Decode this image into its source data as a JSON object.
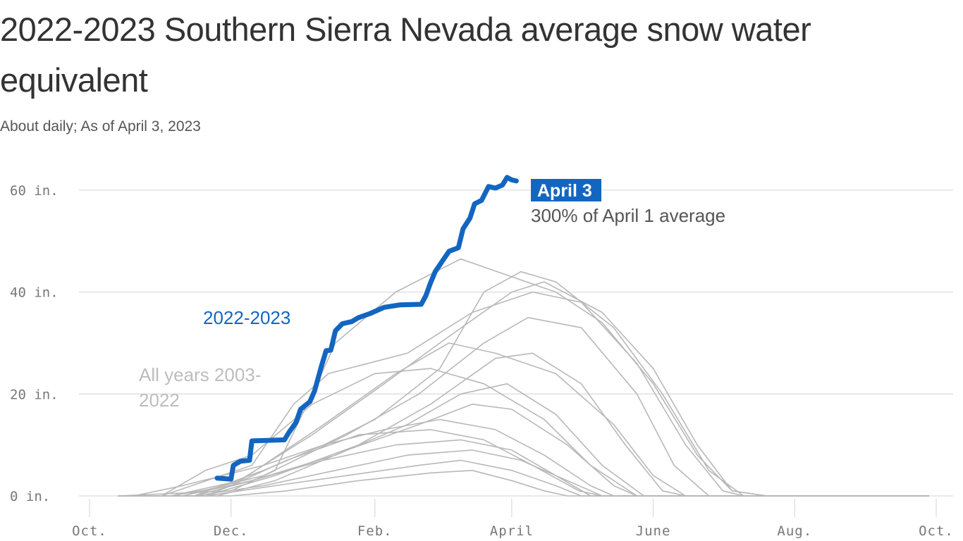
{
  "chart_data": {
    "type": "line",
    "title": "2022-2023 Southern Sierra Nevada average snow water equivalent",
    "subtitle": "About daily; As of April 3, 2023",
    "xlabel": "",
    "ylabel": "",
    "ylim": [
      0,
      65
    ],
    "y_ticks": [
      {
        "value": 0,
        "label": "0 in."
      },
      {
        "value": 20,
        "label": "20 in."
      },
      {
        "value": 40,
        "label": "40 in."
      },
      {
        "value": 60,
        "label": "60 in."
      }
    ],
    "x_ticks": [
      {
        "date": "10-01",
        "label": "Oct."
      },
      {
        "date": "12-01",
        "label": "Dec."
      },
      {
        "date": "02-01",
        "label": "Feb."
      },
      {
        "date": "04-01",
        "label": "April"
      },
      {
        "date": "06-01",
        "label": "June"
      },
      {
        "date": "08-01",
        "label": "Aug."
      },
      {
        "date": "10-01+",
        "label": "Oct."
      }
    ],
    "grid": true,
    "colors": {
      "current": "#1366c0",
      "history": "#b8b8b8"
    },
    "annotations": {
      "current_label": "2022-2023",
      "history_label_line1": "All years 2003-",
      "history_label_line2": "2022",
      "end_badge": "April 3",
      "end_note": "300% of April 1 average"
    },
    "series": [
      {
        "name": "2022-2023",
        "highlight": true,
        "points": [
          [
            "2022-11-25",
            3.5
          ],
          [
            "2022-12-01",
            3.3
          ],
          [
            "2022-12-02",
            6
          ],
          [
            "2022-12-05",
            6.8
          ],
          [
            "2022-12-09",
            7
          ],
          [
            "2022-12-10",
            10.8
          ],
          [
            "2022-12-24",
            11
          ],
          [
            "2022-12-26",
            12.5
          ],
          [
            "2022-12-29",
            14.4
          ],
          [
            "2022-12-31",
            17
          ],
          [
            "2023-01-04",
            18.5
          ],
          [
            "2023-01-06",
            20.6
          ],
          [
            "2023-01-09",
            25.5
          ],
          [
            "2023-01-11",
            28.5
          ],
          [
            "2023-01-13",
            28.6
          ],
          [
            "2023-01-15",
            32.4
          ],
          [
            "2023-01-18",
            33.8
          ],
          [
            "2023-01-22",
            34.2
          ],
          [
            "2023-01-25",
            35
          ],
          [
            "2023-01-30",
            35.8
          ],
          [
            "2023-02-05",
            37
          ],
          [
            "2023-02-12",
            37.5
          ],
          [
            "2023-02-21",
            37.6
          ],
          [
            "2023-02-23",
            39.3
          ],
          [
            "2023-02-25",
            41.8
          ],
          [
            "2023-02-27",
            44
          ],
          [
            "2023-03-02",
            46
          ],
          [
            "2023-03-05",
            48
          ],
          [
            "2023-03-09",
            48.7
          ],
          [
            "2023-03-11",
            52.4
          ],
          [
            "2023-03-14",
            54.5
          ],
          [
            "2023-03-16",
            57.3
          ],
          [
            "2023-03-19",
            58
          ],
          [
            "2023-03-22",
            60.7
          ],
          [
            "2023-03-25",
            60.4
          ],
          [
            "2023-03-28",
            61
          ],
          [
            "2023-03-30",
            62.5
          ],
          [
            "2023-04-01",
            62
          ],
          [
            "2023-04-03",
            61.8
          ]
        ]
      },
      {
        "name": "",
        "points": [
          [
            "10-01",
            0
          ],
          [
            "12-01",
            1
          ],
          [
            "12-20",
            5
          ],
          [
            "01-05",
            20
          ],
          [
            "01-15",
            30
          ],
          [
            "02-10",
            40
          ],
          [
            "03-10",
            46.5
          ],
          [
            "04-01",
            43
          ],
          [
            "04-20",
            40
          ],
          [
            "05-10",
            34
          ],
          [
            "06-01",
            22
          ],
          [
            "06-20",
            8
          ],
          [
            "07-05",
            1
          ],
          [
            "07-20",
            0
          ]
        ]
      },
      {
        "name": "",
        "points": [
          [
            "11-15",
            0
          ],
          [
            "12-15",
            5
          ],
          [
            "01-10",
            10
          ],
          [
            "02-01",
            15
          ],
          [
            "03-01",
            25
          ],
          [
            "03-20",
            40
          ],
          [
            "04-05",
            44
          ],
          [
            "04-20",
            42
          ],
          [
            "05-15",
            33
          ],
          [
            "06-05",
            20
          ],
          [
            "06-25",
            5
          ],
          [
            "07-10",
            0
          ]
        ]
      },
      {
        "name": "",
        "points": [
          [
            "11-20",
            0
          ],
          [
            "12-01",
            2
          ],
          [
            "01-05",
            12
          ],
          [
            "02-05",
            22
          ],
          [
            "03-01",
            30
          ],
          [
            "04-01",
            40
          ],
          [
            "04-15",
            42
          ],
          [
            "05-10",
            36
          ],
          [
            "06-01",
            25
          ],
          [
            "06-20",
            10
          ],
          [
            "07-05",
            1
          ],
          [
            "07-20",
            0
          ]
        ]
      },
      {
        "name": "",
        "points": [
          [
            "11-01",
            0
          ],
          [
            "12-10",
            6
          ],
          [
            "12-28",
            18
          ],
          [
            "01-12",
            24
          ],
          [
            "02-15",
            28
          ],
          [
            "03-15",
            36
          ],
          [
            "04-10",
            40
          ],
          [
            "05-01",
            38
          ],
          [
            "05-25",
            26
          ],
          [
            "06-15",
            10
          ],
          [
            "07-01",
            1
          ],
          [
            "07-10",
            0
          ]
        ]
      },
      {
        "name": "",
        "points": [
          [
            "11-10",
            0
          ],
          [
            "12-15",
            4
          ],
          [
            "01-20",
            12
          ],
          [
            "02-20",
            20
          ],
          [
            "03-20",
            30
          ],
          [
            "04-08",
            35
          ],
          [
            "05-01",
            33
          ],
          [
            "05-25",
            20
          ],
          [
            "06-10",
            6
          ],
          [
            "06-25",
            0
          ]
        ]
      },
      {
        "name": "",
        "points": [
          [
            "11-05",
            0
          ],
          [
            "12-05",
            3
          ],
          [
            "01-10",
            14
          ],
          [
            "02-10",
            24
          ],
          [
            "03-05",
            30
          ],
          [
            "03-25",
            28
          ],
          [
            "04-20",
            24
          ],
          [
            "05-15",
            14
          ],
          [
            "06-01",
            4
          ],
          [
            "06-15",
            0
          ]
        ]
      },
      {
        "name": "",
        "points": [
          [
            "11-20",
            0
          ],
          [
            "12-20",
            4
          ],
          [
            "01-25",
            10
          ],
          [
            "02-25",
            18
          ],
          [
            "03-25",
            27
          ],
          [
            "04-10",
            28
          ],
          [
            "05-01",
            22
          ],
          [
            "05-20",
            10
          ],
          [
            "06-05",
            1
          ],
          [
            "06-15",
            0
          ]
        ]
      },
      {
        "name": "",
        "points": [
          [
            "11-01",
            0
          ],
          [
            "11-20",
            5
          ],
          [
            "12-10",
            8
          ],
          [
            "01-05",
            18
          ],
          [
            "02-01",
            24
          ],
          [
            "02-25",
            25
          ],
          [
            "03-20",
            22
          ],
          [
            "04-15",
            15
          ],
          [
            "05-05",
            6
          ],
          [
            "05-25",
            0
          ]
        ]
      },
      {
        "name": "",
        "points": [
          [
            "11-15",
            0
          ],
          [
            "12-10",
            3
          ],
          [
            "01-15",
            8
          ],
          [
            "02-15",
            14
          ],
          [
            "03-10",
            20
          ],
          [
            "03-30",
            22
          ],
          [
            "04-20",
            16
          ],
          [
            "05-10",
            6
          ],
          [
            "05-28",
            0
          ]
        ]
      },
      {
        "name": "",
        "points": [
          [
            "11-25",
            0
          ],
          [
            "12-20",
            3
          ],
          [
            "01-20",
            9
          ],
          [
            "02-20",
            14
          ],
          [
            "03-15",
            18
          ],
          [
            "04-01",
            17
          ],
          [
            "04-25",
            10
          ],
          [
            "05-15",
            2
          ],
          [
            "05-25",
            0
          ]
        ]
      },
      {
        "name": "",
        "points": [
          [
            "10-20",
            0
          ],
          [
            "11-10",
            2
          ],
          [
            "12-15",
            6
          ],
          [
            "01-10",
            10
          ],
          [
            "02-05",
            13
          ],
          [
            "03-01",
            15
          ],
          [
            "03-25",
            13
          ],
          [
            "04-15",
            8
          ],
          [
            "05-05",
            2
          ],
          [
            "05-15",
            0
          ]
        ]
      },
      {
        "name": "",
        "points": [
          [
            "11-05",
            0
          ],
          [
            "12-01",
            2
          ],
          [
            "12-25",
            7
          ],
          [
            "01-25",
            12
          ],
          [
            "02-25",
            13
          ],
          [
            "03-20",
            11
          ],
          [
            "04-10",
            6
          ],
          [
            "04-30",
            1
          ],
          [
            "05-10",
            0
          ]
        ]
      },
      {
        "name": "",
        "points": [
          [
            "11-10",
            0
          ],
          [
            "12-10",
            3
          ],
          [
            "01-10",
            7
          ],
          [
            "02-10",
            10
          ],
          [
            "03-10",
            11
          ],
          [
            "04-01",
            9
          ],
          [
            "04-20",
            4
          ],
          [
            "05-05",
            0
          ]
        ]
      },
      {
        "name": "",
        "points": [
          [
            "11-15",
            0
          ],
          [
            "12-15",
            2
          ],
          [
            "01-15",
            5
          ],
          [
            "02-15",
            8
          ],
          [
            "03-15",
            9
          ],
          [
            "04-05",
            7
          ],
          [
            "04-25",
            3
          ],
          [
            "05-10",
            0
          ]
        ]
      },
      {
        "name": "",
        "points": [
          [
            "11-20",
            0
          ],
          [
            "12-20",
            2
          ],
          [
            "01-20",
            4
          ],
          [
            "02-20",
            6
          ],
          [
            "03-10",
            7
          ],
          [
            "04-01",
            5
          ],
          [
            "04-20",
            2
          ],
          [
            "05-01",
            0
          ]
        ]
      },
      {
        "name": "",
        "points": [
          [
            "12-01",
            0
          ],
          [
            "12-25",
            1
          ],
          [
            "01-25",
            3
          ],
          [
            "02-25",
            4.5
          ],
          [
            "03-15",
            5
          ],
          [
            "04-01",
            3
          ],
          [
            "04-15",
            1
          ],
          [
            "04-25",
            0
          ]
        ]
      }
    ]
  }
}
